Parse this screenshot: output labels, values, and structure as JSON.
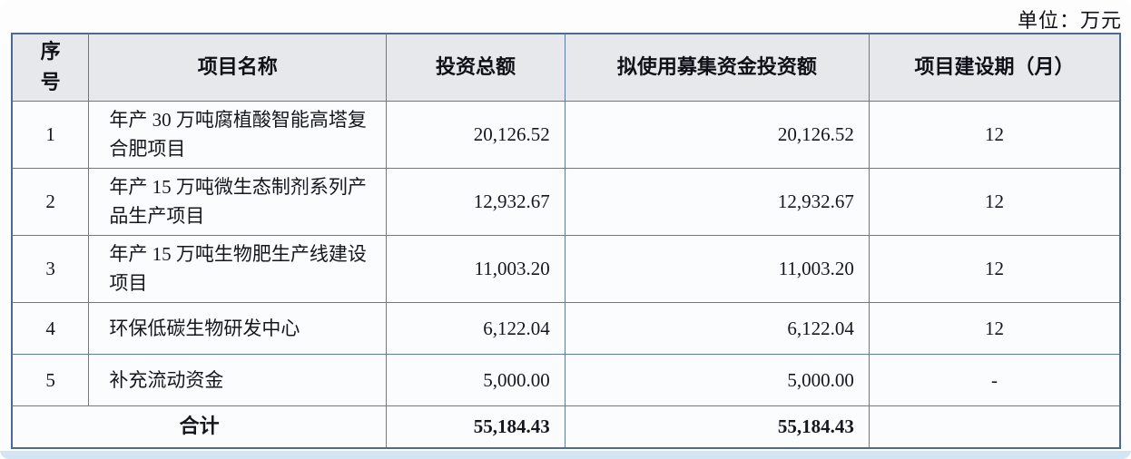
{
  "unit_label": "单位：万元",
  "table": {
    "headers": {
      "no": "序号",
      "name": "项目名称",
      "total": "投资总额",
      "raised": "拟使用募集资金投资额",
      "period": "项目建设期（月）"
    },
    "rows": [
      {
        "no": "1",
        "name": "年产 30 万吨腐植酸智能高塔复合肥项目",
        "total": "20,126.52",
        "raised": "20,126.52",
        "period": "12"
      },
      {
        "no": "2",
        "name": "年产 15 万吨微生态制剂系列产品生产项目",
        "total": "12,932.67",
        "raised": "12,932.67",
        "period": "12"
      },
      {
        "no": "3",
        "name": "年产 15 万吨生物肥生产线建设项目",
        "total": "11,003.20",
        "raised": "11,003.20",
        "period": "12"
      },
      {
        "no": "4",
        "name": "环保低碳生物研发中心",
        "total": "6,122.04",
        "raised": "6,122.04",
        "period": "12"
      },
      {
        "no": "5",
        "name": "补充流动资金",
        "total": "5,000.00",
        "raised": "5,000.00",
        "period": "-"
      }
    ],
    "total_row": {
      "label": "合计",
      "total": "55,184.43",
      "raised": "55,184.43",
      "period": ""
    }
  },
  "colors": {
    "border": "#5d7ca2",
    "header_bg": "#e7e8eb",
    "cell_bg": "#fafcfe",
    "bottom_band": "#d3e4f2",
    "text": "#16161e"
  }
}
